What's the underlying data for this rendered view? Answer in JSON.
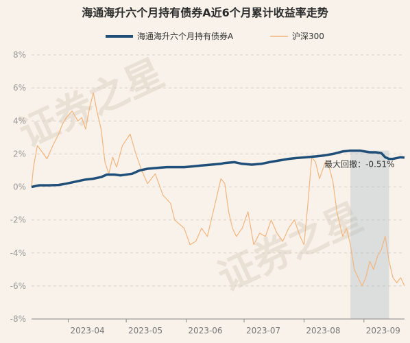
{
  "chart_data": {
    "type": "line",
    "title": "海通海升六个月持有债券A近6个月累计收益率走势",
    "legend_position": "top-center",
    "grid": true,
    "x_ticks": [
      "2023-04",
      "2023-05",
      "2023-06",
      "2023-07",
      "2023-08",
      "2023-09"
    ],
    "y_ticks": [
      "8%",
      "6%",
      "4%",
      "2%",
      "0%",
      "-2%",
      "-4%",
      "-6%",
      "-8%"
    ],
    "ylim": [
      -8,
      8
    ],
    "xlim": [
      "2023-03-13",
      "2023-09-22"
    ],
    "series": [
      {
        "name": "海通海升六个月持有债券A",
        "color": "#1f4e79",
        "points": [
          [
            "2023-03-13",
            0.0
          ],
          [
            "2023-03-17",
            0.1
          ],
          [
            "2023-03-22",
            0.1
          ],
          [
            "2023-03-27",
            0.12
          ],
          [
            "2023-03-31",
            0.2
          ],
          [
            "2023-04-06",
            0.35
          ],
          [
            "2023-04-10",
            0.45
          ],
          [
            "2023-04-14",
            0.5
          ],
          [
            "2023-04-18",
            0.6
          ],
          [
            "2023-04-21",
            0.75
          ],
          [
            "2023-04-25",
            0.75
          ],
          [
            "2023-04-28",
            0.7
          ],
          [
            "2023-05-04",
            0.8
          ],
          [
            "2023-05-08",
            1.0
          ],
          [
            "2023-05-12",
            1.1
          ],
          [
            "2023-05-17",
            1.15
          ],
          [
            "2023-05-22",
            1.2
          ],
          [
            "2023-05-26",
            1.2
          ],
          [
            "2023-05-31",
            1.2
          ],
          [
            "2023-06-05",
            1.25
          ],
          [
            "2023-06-09",
            1.3
          ],
          [
            "2023-06-14",
            1.35
          ],
          [
            "2023-06-19",
            1.4
          ],
          [
            "2023-06-21",
            1.45
          ],
          [
            "2023-06-26",
            1.5
          ],
          [
            "2023-06-30",
            1.4
          ],
          [
            "2023-07-05",
            1.35
          ],
          [
            "2023-07-10",
            1.4
          ],
          [
            "2023-07-14",
            1.5
          ],
          [
            "2023-07-19",
            1.6
          ],
          [
            "2023-07-24",
            1.7
          ],
          [
            "2023-07-28",
            1.75
          ],
          [
            "2023-08-02",
            1.8
          ],
          [
            "2023-08-07",
            1.85
          ],
          [
            "2023-08-11",
            1.9
          ],
          [
            "2023-08-16",
            2.0
          ],
          [
            "2023-08-21",
            2.15
          ],
          [
            "2023-08-25",
            2.2
          ],
          [
            "2023-08-30",
            2.2
          ],
          [
            "2023-09-04",
            2.1
          ],
          [
            "2023-09-07",
            2.1
          ],
          [
            "2023-09-10",
            2.05
          ],
          [
            "2023-09-12",
            1.8
          ],
          [
            "2023-09-14",
            1.7
          ],
          [
            "2023-09-16",
            1.7
          ],
          [
            "2023-09-18",
            1.75
          ],
          [
            "2023-09-20",
            1.8
          ],
          [
            "2023-09-22",
            1.78
          ]
        ]
      },
      {
        "name": "沪深300",
        "color": "#f2b57d",
        "points": [
          [
            "2023-03-13",
            0.0
          ],
          [
            "2023-03-14",
            1.2
          ],
          [
            "2023-03-16",
            2.5
          ],
          [
            "2023-03-18",
            2.2
          ],
          [
            "2023-03-21",
            1.7
          ],
          [
            "2023-03-24",
            2.5
          ],
          [
            "2023-03-27",
            3.2
          ],
          [
            "2023-03-29",
            3.8
          ],
          [
            "2023-03-31",
            4.2
          ],
          [
            "2023-04-03",
            4.6
          ],
          [
            "2023-04-06",
            4.0
          ],
          [
            "2023-04-08",
            4.2
          ],
          [
            "2023-04-10",
            3.5
          ],
          [
            "2023-04-12",
            4.8
          ],
          [
            "2023-04-14",
            5.7
          ],
          [
            "2023-04-16",
            4.5
          ],
          [
            "2023-04-18",
            3.5
          ],
          [
            "2023-04-20",
            1.5
          ],
          [
            "2023-04-22",
            0.8
          ],
          [
            "2023-04-24",
            1.8
          ],
          [
            "2023-04-26",
            1.2
          ],
          [
            "2023-04-29",
            2.5
          ],
          [
            "2023-05-03",
            3.2
          ],
          [
            "2023-05-06",
            2.0
          ],
          [
            "2023-05-09",
            1.0
          ],
          [
            "2023-05-12",
            0.2
          ],
          [
            "2023-05-16",
            0.8
          ],
          [
            "2023-05-20",
            -0.5
          ],
          [
            "2023-05-24",
            -1.0
          ],
          [
            "2023-05-26",
            -2.0
          ],
          [
            "2023-05-28",
            -2.2
          ],
          [
            "2023-05-31",
            -2.5
          ],
          [
            "2023-06-03",
            -3.5
          ],
          [
            "2023-06-06",
            -3.3
          ],
          [
            "2023-06-09",
            -2.5
          ],
          [
            "2023-06-12",
            -3.0
          ],
          [
            "2023-06-14",
            -2.0
          ],
          [
            "2023-06-16",
            -1.0
          ],
          [
            "2023-06-19",
            0.5
          ],
          [
            "2023-06-21",
            0.2
          ],
          [
            "2023-06-23",
            -1.5
          ],
          [
            "2023-06-25",
            -2.5
          ],
          [
            "2023-06-27",
            -3.0
          ],
          [
            "2023-06-30",
            -2.5
          ],
          [
            "2023-07-03",
            -1.5
          ],
          [
            "2023-07-06",
            -3.5
          ],
          [
            "2023-07-09",
            -2.8
          ],
          [
            "2023-07-12",
            -3.0
          ],
          [
            "2023-07-15",
            -2.0
          ],
          [
            "2023-07-18",
            -2.8
          ],
          [
            "2023-07-21",
            -3.3
          ],
          [
            "2023-07-24",
            -2.5
          ],
          [
            "2023-07-27",
            -2.0
          ],
          [
            "2023-07-30",
            -3.0
          ],
          [
            "2023-08-01",
            -3.5
          ],
          [
            "2023-08-03",
            -1.0
          ],
          [
            "2023-08-05",
            1.8
          ],
          [
            "2023-08-07",
            1.5
          ],
          [
            "2023-08-09",
            0.5
          ],
          [
            "2023-08-12",
            1.5
          ],
          [
            "2023-08-14",
            1.2
          ],
          [
            "2023-08-16",
            0.3
          ],
          [
            "2023-08-18",
            -1.5
          ],
          [
            "2023-08-21",
            -3.0
          ],
          [
            "2023-08-23",
            -2.5
          ],
          [
            "2023-08-25",
            -3.5
          ],
          [
            "2023-08-27",
            -5.0
          ],
          [
            "2023-08-29",
            -5.5
          ],
          [
            "2023-08-31",
            -6.0
          ],
          [
            "2023-09-02",
            -5.5
          ],
          [
            "2023-09-04",
            -4.5
          ],
          [
            "2023-09-06",
            -5.0
          ],
          [
            "2023-09-08",
            -4.2
          ],
          [
            "2023-09-10",
            -3.8
          ],
          [
            "2023-09-12",
            -3.0
          ],
          [
            "2023-09-14",
            -4.5
          ],
          [
            "2023-09-16",
            -5.5
          ],
          [
            "2023-09-18",
            -5.8
          ],
          [
            "2023-09-20",
            -5.5
          ],
          [
            "2023-09-22",
            -6.0
          ]
        ]
      }
    ],
    "drawdown": {
      "label": "最大回撤：-0.51%",
      "start": "2023-08-25",
      "end": "2023-09-14",
      "color": "#a9b8c6"
    },
    "watermark": [
      "证券之星",
      "证券之星"
    ]
  }
}
